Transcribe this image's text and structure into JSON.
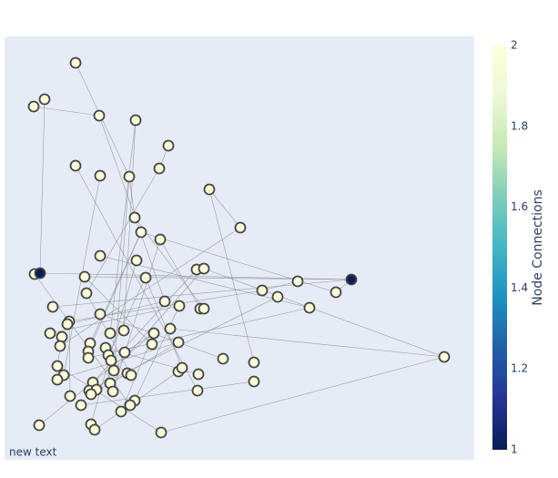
{
  "chart_data": {
    "type": "network",
    "annotation": "new text",
    "colorbar_title": "Node Connections",
    "colorscale": [
      "#081d58",
      "#253494",
      "#225ea8",
      "#1d91c0",
      "#41b6c4",
      "#7fcdbb",
      "#c7e9b4",
      "#edf8d9",
      "#ffffd9"
    ],
    "clim": [
      1,
      2
    ],
    "cticks": [
      1,
      1.2,
      1.4,
      1.6,
      1.8,
      2
    ],
    "xlim": [
      0,
      516
    ],
    "ylim": [
      0,
      465
    ],
    "edge_color": "#888888",
    "x": [
      78,
      44,
      32,
      104,
      144,
      180,
      78,
      170,
      105,
      137,
      225,
      143,
      259,
      150,
      171,
      105,
      145,
      211,
      219,
      33,
      39,
      381,
      88,
      155,
      322,
      283,
      364,
      300,
      90,
      176,
      192,
      215,
      219,
      335,
      53,
      105,
      71,
      69,
      50,
      63,
      116,
      131,
      182,
      164,
      61,
      94,
      162,
      191,
      111,
      92,
      132,
      92,
      114,
      117,
      240,
      274,
      483,
      58,
      120,
      135,
      139,
      191,
      195,
      213,
      65,
      58,
      97,
      116,
      274,
      93,
      101,
      119,
      212,
      72,
      95,
      143,
      138,
      84,
      128,
      95,
      38,
      99,
      172
    ],
    "y": [
      436,
      396,
      388,
      378,
      373,
      345,
      323,
      320,
      312,
      311,
      297,
      266,
      255,
      250,
      242,
      224,
      219,
      209,
      210,
      204,
      205,
      198,
      201,
      200,
      196,
      186,
      184,
      179,
      183,
      174,
      169,
      166,
      166,
      167,
      168,
      160,
      152,
      149,
      139,
      135,
      139,
      142,
      144,
      139,
      125,
      128,
      127,
      129,
      123,
      119,
      118,
      112,
      115,
      109,
      111,
      107,
      113,
      103,
      98,
      95,
      93,
      97,
      101,
      94,
      93,
      88,
      85,
      84,
      86,
      76,
      77,
      75,
      76,
      70,
      72,
      65,
      60,
      60,
      53,
      39,
      38,
      33,
      30
    ],
    "values": [
      2,
      2,
      2,
      2,
      2,
      2,
      2,
      2,
      2,
      2,
      2,
      2,
      2,
      2,
      2,
      2,
      2,
      2,
      2,
      2,
      1,
      1,
      2,
      2,
      2,
      2,
      2,
      2,
      2,
      2,
      2,
      2,
      2,
      2,
      2,
      2,
      2,
      2,
      2,
      2,
      2,
      2,
      2,
      2,
      2,
      2,
      2,
      2,
      2,
      2,
      2,
      2,
      2,
      2,
      2,
      2,
      2,
      2,
      2,
      2,
      2,
      2,
      2,
      2,
      2,
      2,
      2,
      2,
      2,
      2,
      2,
      2,
      2,
      2,
      2,
      2,
      2,
      2,
      2,
      2,
      2,
      2,
      2
    ],
    "edges": [
      [
        0,
        9
      ],
      [
        2,
        3
      ],
      [
        3,
        29
      ],
      [
        4,
        40
      ],
      [
        4,
        41
      ],
      [
        5,
        7
      ],
      [
        6,
        72
      ],
      [
        7,
        28
      ],
      [
        8,
        64
      ],
      [
        9,
        11
      ],
      [
        9,
        58
      ],
      [
        10,
        12
      ],
      [
        10,
        55
      ],
      [
        12,
        44
      ],
      [
        13,
        49
      ],
      [
        13,
        45
      ],
      [
        14,
        31
      ],
      [
        15,
        33
      ],
      [
        16,
        79
      ],
      [
        17,
        66
      ],
      [
        18,
        56
      ],
      [
        19,
        76
      ],
      [
        20,
        21
      ],
      [
        21,
        22
      ],
      [
        21,
        26
      ],
      [
        22,
        46
      ],
      [
        23,
        62
      ],
      [
        24,
        25
      ],
      [
        25,
        36
      ],
      [
        26,
        13
      ],
      [
        27,
        69
      ],
      [
        28,
        60
      ],
      [
        29,
        37
      ],
      [
        30,
        38
      ],
      [
        32,
        11
      ],
      [
        34,
        21
      ],
      [
        35,
        54
      ],
      [
        36,
        73
      ],
      [
        39,
        57
      ],
      [
        42,
        56
      ],
      [
        43,
        78
      ],
      [
        47,
        65
      ],
      [
        50,
        43
      ],
      [
        51,
        33
      ],
      [
        53,
        60
      ],
      [
        56,
        82
      ],
      [
        57,
        82
      ],
      [
        59,
        74
      ],
      [
        61,
        81
      ],
      [
        63,
        48
      ],
      [
        67,
        47
      ],
      [
        68,
        77
      ],
      [
        70,
        18
      ],
      [
        71,
        14
      ],
      [
        75,
        30
      ],
      [
        1,
        20
      ],
      [
        80,
        43
      ],
      [
        52,
        23
      ]
    ]
  }
}
